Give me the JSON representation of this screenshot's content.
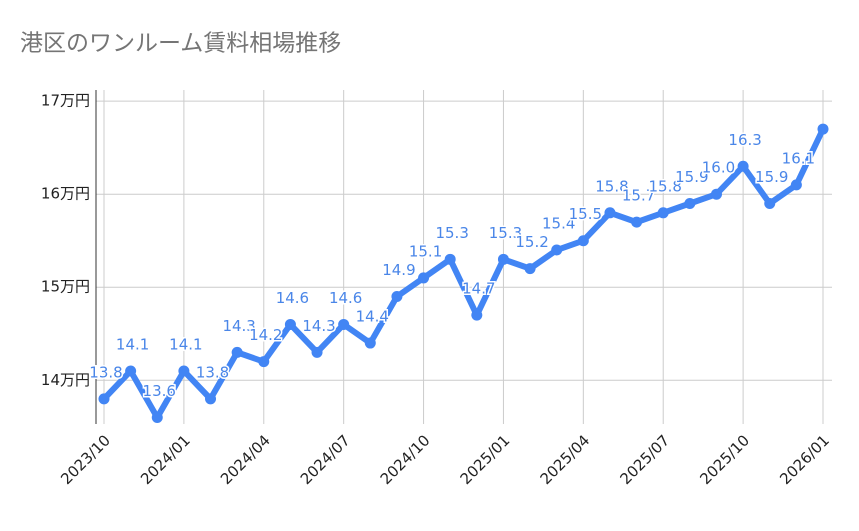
{
  "chart_data": {
    "type": "line",
    "title": "港区のワンルーム賃料相場推移",
    "categories": [
      "2023/10",
      null,
      null,
      "2024/01",
      null,
      null,
      "2024/04",
      null,
      null,
      "2024/07",
      null,
      null,
      "2024/10",
      null,
      null,
      "2025/01",
      null,
      null,
      "2025/04",
      null,
      null,
      "2025/07",
      null,
      null,
      "2025/10",
      null,
      null,
      "2026/01"
    ],
    "series": [
      {
        "color": "#4285f4",
        "values": [
          13.8,
          14.1,
          13.6,
          14.1,
          13.8,
          14.3,
          14.2,
          14.6,
          14.3,
          14.6,
          14.4,
          14.9,
          15.1,
          15.3,
          14.7,
          15.3,
          15.2,
          15.4,
          15.5,
          15.8,
          15.7,
          15.8,
          15.9,
          16.0,
          16.3,
          15.9,
          16.1,
          16.7
        ],
        "value_labels": [
          "13.8",
          "14.1",
          "13.6",
          "14.1",
          "13.8",
          "14.3",
          "14.2",
          "14.6",
          "14.3",
          "14.6",
          "14.4",
          "14.9",
          "15.1",
          "15.3",
          "14.7",
          "15.3",
          "15.2",
          "15.4",
          "15.5",
          "15.8",
          "15.7",
          "15.8",
          "15.9",
          "16.0",
          "16.3",
          "15.9",
          "16.1",
          null
        ]
      }
    ],
    "ylim": [
      13.53,
      17.12
    ],
    "yticks": [
      {
        "value": 14,
        "label": "14万円"
      },
      {
        "value": 15,
        "label": "15万円"
      },
      {
        "value": 16,
        "label": "16万円"
      },
      {
        "value": 17,
        "label": "17万円"
      }
    ],
    "grid": true
  }
}
